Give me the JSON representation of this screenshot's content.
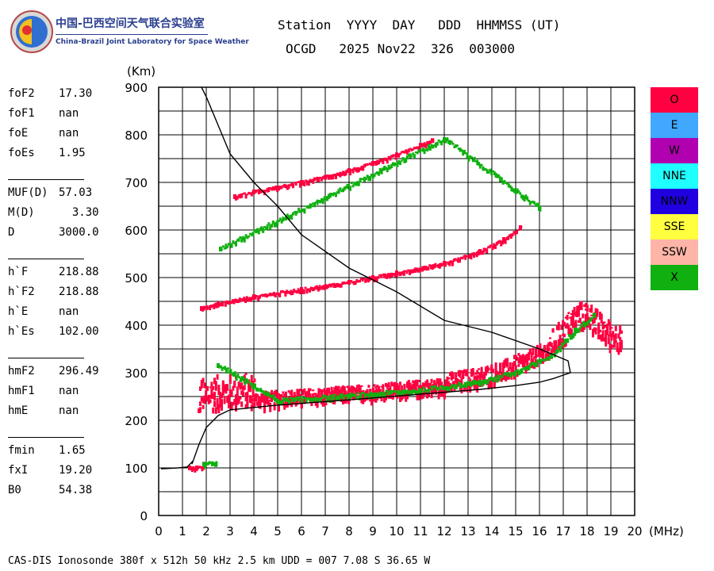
{
  "logo": {
    "cn": "中国-巴西空间天气联合实验室",
    "en": "China-Brazil Joint Laboratory for Space Weather"
  },
  "header": {
    "line1": "Station  YYYY  DAY   DDD  HHMMSS (UT)",
    "line2": "OCGD   2025 Nov22  326  003000"
  },
  "params": [
    {
      "label": "foF2",
      "value": "17.30"
    },
    {
      "label": "foF1",
      "value": "nan"
    },
    {
      "label": "foE",
      "value": "nan"
    },
    {
      "label": "foEs",
      "value": "1.95"
    },
    {
      "label": "MUF(D)",
      "value": "57.03"
    },
    {
      "label": "M(D)",
      "value": "  3.30"
    },
    {
      "label": "D",
      "value": "3000.0"
    },
    {
      "label": "h`F",
      "value": "218.88"
    },
    {
      "label": "h`F2",
      "value": "218.88"
    },
    {
      "label": "h`E",
      "value": "nan"
    },
    {
      "label": "h`Es",
      "value": "102.00"
    },
    {
      "label": "hmF2",
      "value": "296.49"
    },
    {
      "label": "hmF1",
      "value": "nan"
    },
    {
      "label": "hmE",
      "value": "nan"
    },
    {
      "label": "fmin",
      "value": "1.65"
    },
    {
      "label": "fxI",
      "value": "19.20"
    },
    {
      "label": "B0",
      "value": "54.38"
    }
  ],
  "legend": [
    {
      "label": "O",
      "color": "#ff0040"
    },
    {
      "label": "E",
      "color": "#40a8ff"
    },
    {
      "label": "W",
      "color": "#b000b0"
    },
    {
      "label": "NNE",
      "color": "#20ffff"
    },
    {
      "label": "NNW",
      "color": "#2000e0"
    },
    {
      "label": "SSE",
      "color": "#ffff40"
    },
    {
      "label": "SSW",
      "color": "#ffb4a8"
    },
    {
      "label": "X",
      "color": "#10b010"
    }
  ],
  "footer": "CAS-DIS Ionosonde 380f x 512h 50 kHz 2.5 km UDD = 007 7.08 S 36.65 W",
  "chart_data": {
    "type": "scatter",
    "xlabel": "(MHz)",
    "ylabel": "(Km)",
    "xlim": [
      0,
      20
    ],
    "ylim": [
      0,
      900
    ],
    "x_ticks": [
      0,
      1,
      2,
      3,
      4,
      5,
      6,
      7,
      8,
      9,
      10,
      11,
      12,
      13,
      14,
      15,
      16,
      17,
      18,
      19,
      20
    ],
    "y_ticks": [
      0,
      100,
      200,
      300,
      400,
      500,
      600,
      700,
      800,
      900
    ],
    "grid": true,
    "series": [
      {
        "name": "O",
        "color": "#ff0040",
        "traces": [
          {
            "x": [
              1.3,
              1.6,
              1.9
            ],
            "y": [
              100,
              100,
              103
            ]
          },
          {
            "x": [
              1.7,
              2.5,
              4.0,
              6.0,
              8.0,
              10.0,
              12.0,
              13.5,
              14.5,
              15.5,
              16.3,
              17.0,
              17.5,
              18.0,
              18.5,
              19.0,
              19.4
            ],
            "y": [
              220,
              228,
              232,
              238,
              245,
              253,
              262,
              275,
              290,
              310,
              330,
              365,
              395,
              400,
              375,
              355,
              348
            ]
          },
          {
            "x": [
              1.8,
              2.5,
              4.0,
              6.0,
              8.0,
              9.0,
              10.0,
              12.0,
              13.5,
              14.5,
              15.2
            ],
            "y": [
              435,
              445,
              460,
              475,
              490,
              500,
              510,
              530,
              555,
              580,
              605
            ]
          },
          {
            "x": [
              3.2,
              4.0,
              6.0,
              8.0,
              9.0,
              10.0,
              11.0,
              11.5
            ],
            "y": [
              670,
              680,
              700,
              725,
              740,
              758,
              778,
              788
            ]
          }
        ]
      },
      {
        "name": "X",
        "color": "#10b010",
        "traces": [
          {
            "x": [
              1.9,
              2.4
            ],
            "y": [
              108,
              107
            ]
          },
          {
            "x": [
              2.5,
              5.0,
              8.0,
              11.0,
              13.5,
              15.0,
              16.5,
              17.5,
              18.3
            ],
            "y": [
              315,
              240,
              250,
              262,
              280,
              300,
              335,
              390,
              420
            ]
          },
          {
            "x": [
              2.6,
              12.0,
              16.0
            ],
            "y": [
              560,
              790,
              645
            ]
          }
        ]
      },
      {
        "name": "model profile",
        "color": "#000000",
        "traces": [
          {
            "x": [
              0.1,
              0.8,
              1.2,
              1.45,
              1.4,
              1.7,
              2.0,
              2.5,
              3.0,
              5.0,
              8.0,
              11.0,
              13.5,
              15.0,
              16.0,
              16.6,
              17.0,
              17.3,
              17.2,
              16.0,
              14.0,
              12.0,
              10.0,
              8.0,
              6.0,
              5.0,
              4.0,
              3.0,
              2.5,
              2.0,
              1.8
            ],
            "y": [
              98,
              100,
              102,
              115,
              108,
              150,
              185,
              210,
              222,
              232,
              243,
              255,
              265,
              273,
              280,
              288,
              295,
              300,
              325,
              350,
              385,
              410,
              470,
              520,
              590,
              650,
              700,
              760,
              820,
              880,
              900
            ]
          }
        ]
      }
    ]
  }
}
